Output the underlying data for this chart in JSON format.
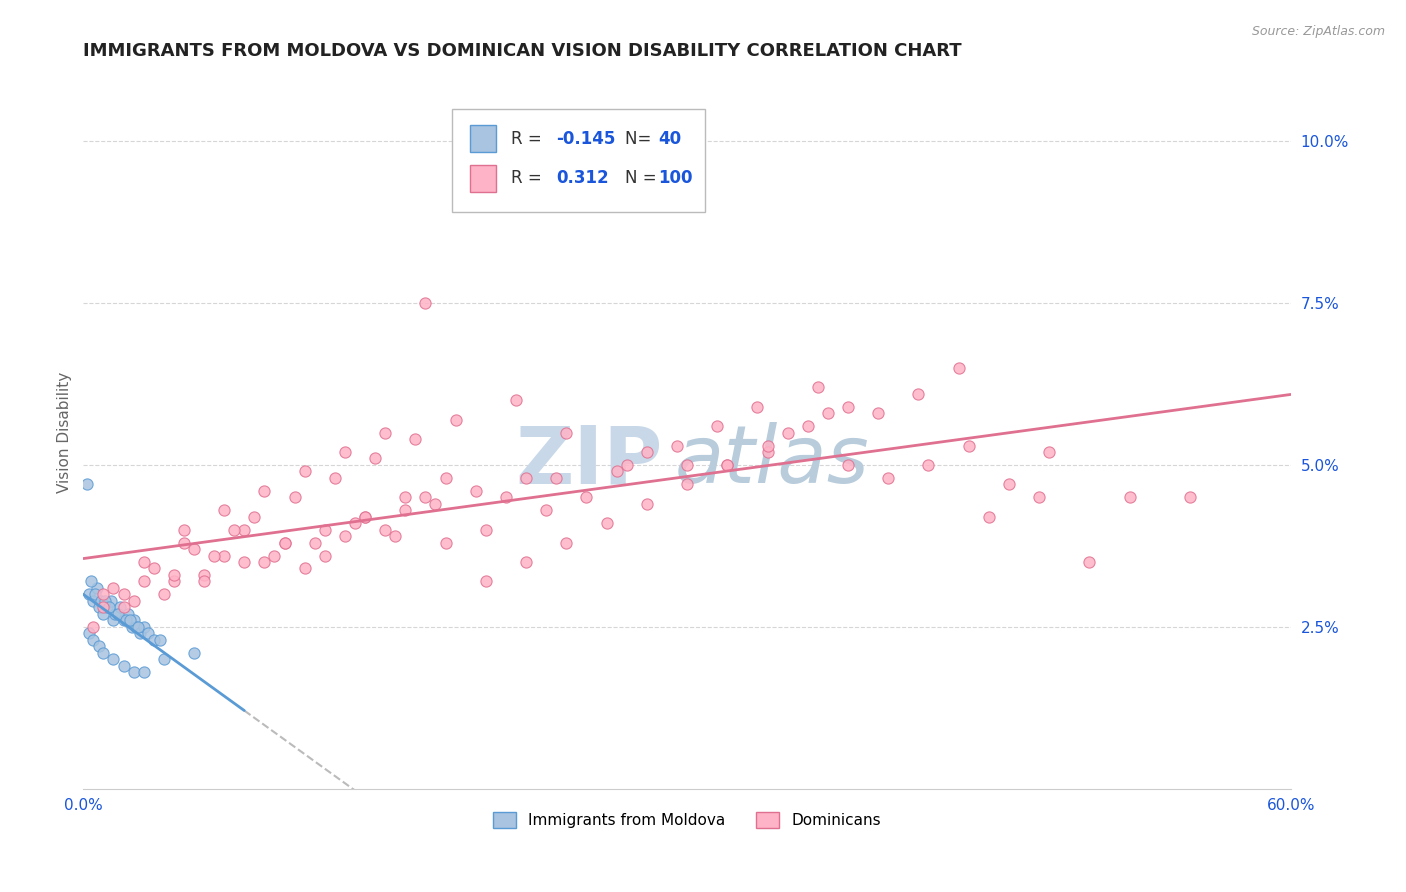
{
  "title": "IMMIGRANTS FROM MOLDOVA VS DOMINICAN VISION DISABILITY CORRELATION CHART",
  "source": "Source: ZipAtlas.com",
  "ylabel": "Vision Disability",
  "series": [
    {
      "name": "Immigrants from Moldova",
      "color": "#a8c4e0",
      "edge_color": "#5b9bd5",
      "R": -0.145,
      "N": 40,
      "line_color": "#5b9bd5",
      "x": [
        0.3,
        0.5,
        0.7,
        0.8,
        1.0,
        1.2,
        1.4,
        1.5,
        1.6,
        1.8,
        2.0,
        2.2,
        2.4,
        2.5,
        2.6,
        2.8,
        3.0,
        3.2,
        3.5,
        3.8,
        0.2,
        0.4,
        0.6,
        0.9,
        1.1,
        1.3,
        1.7,
        2.1,
        2.3,
        2.7,
        0.3,
        0.5,
        0.8,
        1.0,
        1.5,
        2.0,
        2.5,
        3.0,
        4.0,
        5.5
      ],
      "y": [
        3.0,
        2.9,
        3.1,
        2.8,
        2.7,
        2.8,
        2.9,
        2.6,
        2.7,
        2.8,
        2.6,
        2.7,
        2.5,
        2.6,
        2.5,
        2.4,
        2.5,
        2.4,
        2.3,
        2.3,
        4.7,
        3.2,
        3.0,
        2.9,
        2.9,
        2.8,
        2.7,
        2.6,
        2.6,
        2.5,
        2.4,
        2.3,
        2.2,
        2.1,
        2.0,
        1.9,
        1.8,
        1.8,
        2.0,
        2.1
      ]
    },
    {
      "name": "Dominicans",
      "color": "#ffb3c6",
      "edge_color": "#e07090",
      "R": 0.312,
      "N": 100,
      "line_color": "#e07090",
      "x": [
        1.0,
        2.0,
        3.0,
        4.5,
        5.0,
        6.0,
        7.0,
        8.0,
        9.0,
        10.0,
        11.0,
        12.0,
        13.0,
        14.0,
        15.0,
        16.0,
        17.0,
        18.0,
        20.0,
        21.0,
        22.0,
        23.0,
        24.0,
        25.0,
        27.0,
        28.0,
        30.0,
        32.0,
        34.0,
        35.0,
        37.0,
        38.0,
        40.0,
        42.0,
        44.0,
        45.0,
        46.0,
        48.0,
        50.0,
        52.0,
        1.5,
        3.5,
        5.5,
        7.5,
        9.5,
        11.5,
        13.5,
        15.5,
        17.5,
        19.5,
        2.5,
        4.5,
        6.5,
        8.5,
        10.5,
        12.5,
        14.5,
        16.5,
        18.5,
        21.5,
        23.5,
        26.5,
        29.5,
        31.5,
        33.5,
        36.5,
        39.5,
        41.5,
        43.5,
        47.5,
        0.5,
        2.0,
        4.0,
        6.0,
        8.0,
        10.0,
        12.0,
        14.0,
        16.0,
        18.0,
        20.0,
        22.0,
        24.0,
        26.0,
        28.0,
        30.0,
        32.0,
        34.0,
        36.0,
        38.0,
        1.0,
        3.0,
        5.0,
        7.0,
        9.0,
        11.0,
        13.0,
        15.0,
        17.0,
        55.0
      ],
      "y": [
        2.8,
        3.0,
        3.5,
        3.2,
        3.8,
        3.3,
        3.6,
        4.0,
        3.5,
        3.8,
        3.4,
        3.6,
        3.9,
        4.2,
        4.0,
        4.3,
        4.5,
        3.8,
        4.0,
        4.5,
        4.8,
        4.3,
        5.5,
        4.5,
        5.0,
        5.2,
        5.0,
        5.0,
        5.2,
        5.5,
        5.8,
        5.0,
        4.8,
        5.0,
        5.3,
        4.2,
        4.7,
        5.2,
        3.5,
        4.5,
        3.1,
        3.4,
        3.7,
        4.0,
        3.6,
        3.8,
        4.1,
        3.9,
        4.4,
        4.6,
        2.9,
        3.3,
        3.6,
        4.2,
        4.5,
        4.8,
        5.1,
        5.4,
        5.7,
        6.0,
        4.8,
        4.9,
        5.3,
        5.6,
        5.9,
        6.2,
        5.8,
        6.1,
        6.5,
        4.5,
        2.5,
        2.8,
        3.0,
        3.2,
        3.5,
        3.8,
        4.0,
        4.2,
        4.5,
        4.8,
        3.2,
        3.5,
        3.8,
        4.1,
        4.4,
        4.7,
        5.0,
        5.3,
        5.6,
        5.9,
        3.0,
        3.2,
        4.0,
        4.3,
        4.6,
        4.9,
        5.2,
        5.5,
        7.5,
        4.5
      ]
    }
  ],
  "xlim": [
    0,
    60
  ],
  "ylim": [
    0,
    11
  ],
  "yticks": [
    2.5,
    5.0,
    7.5,
    10.0
  ],
  "ytick_labels": [
    "2.5%",
    "5.0%",
    "7.5%",
    "10.0%"
  ],
  "xtick_labels": [
    "0.0%",
    "60.0%"
  ],
  "watermark_zip": "ZIP",
  "watermark_atlas": "atlas",
  "watermark_color_zip": "#c8d8e8",
  "watermark_color_atlas": "#b0c8d8",
  "background_color": "#ffffff",
  "grid_color": "#cccccc",
  "title_fontsize": 13,
  "legend_R_color": "#1a56db",
  "legend_N_color": "#1a56db",
  "legend_label_color": "#333333"
}
